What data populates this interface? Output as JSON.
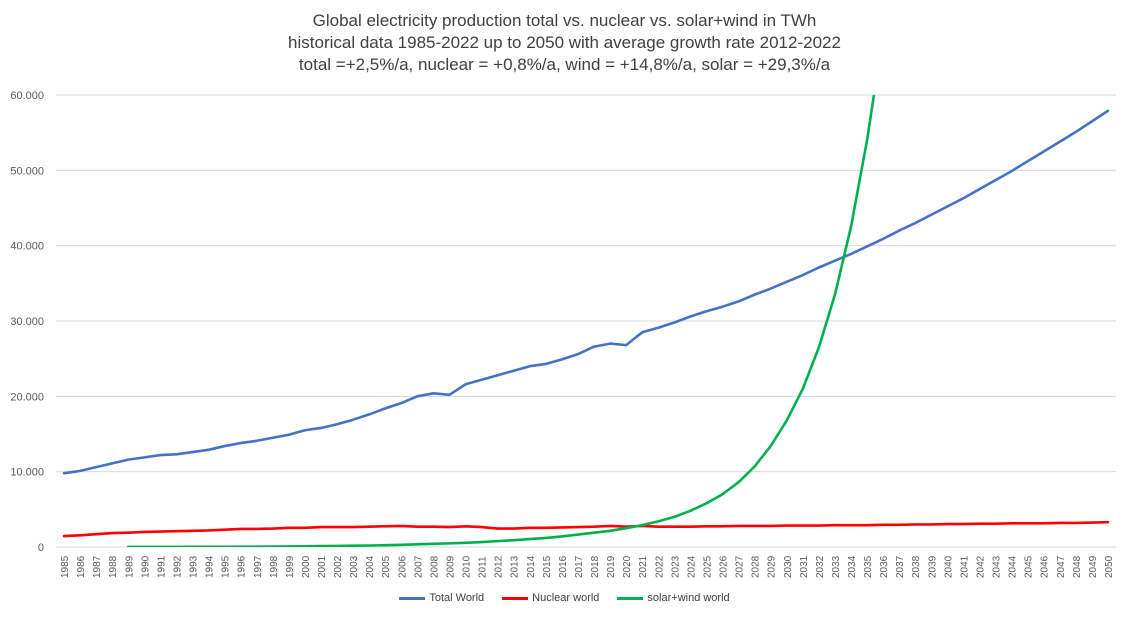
{
  "chart_data": {
    "type": "line",
    "title": "Global electricity production total vs. nuclear vs. solar+wind in TWh",
    "subtitle_lines": [
      "historical data 1985-2022 up to 2050 with average growth rate 2012-2022",
      "total =+2,5%/a, nuclear = +0,8%/a, wind = +14,8%/a, solar = +29,3%/a"
    ],
    "ylim": [
      0,
      60000
    ],
    "yticks": [
      0,
      10000,
      20000,
      30000,
      40000,
      50000,
      60000
    ],
    "ytick_labels": [
      "0",
      "10.000",
      "20.000",
      "30.000",
      "40.000",
      "50.000",
      "60.000"
    ],
    "grid": "horizontal",
    "legend": "bottom",
    "categories": [
      "1985",
      "1986",
      "1987",
      "1988",
      "1989",
      "1990",
      "1991",
      "1992",
      "1993",
      "1994",
      "1995",
      "1996",
      "1997",
      "1998",
      "1999",
      "2000",
      "2001",
      "2002",
      "2003",
      "2004",
      "2005",
      "2006",
      "2007",
      "2008",
      "2009",
      "2010",
      "2011",
      "2012",
      "2013",
      "2014",
      "2015",
      "2016",
      "2017",
      "2018",
      "2019",
      "2020",
      "2021",
      "2022",
      "2023",
      "2024",
      "2025",
      "2026",
      "2027",
      "2028",
      "2029",
      "2030",
      "2031",
      "2032",
      "2033",
      "2034",
      "2035",
      "2036",
      "2037",
      "2038",
      "2039",
      "2040",
      "2041",
      "2042",
      "2043",
      "2044",
      "2045",
      "2046",
      "2047",
      "2048",
      "2049",
      "2050"
    ],
    "series": [
      {
        "name": "Total World",
        "color": "#4472c4",
        "values": [
          9800,
          10100,
          10600,
          11100,
          11600,
          11900,
          12200,
          12300,
          12600,
          12900,
          13400,
          13800,
          14100,
          14500,
          14900,
          15500,
          15800,
          16300,
          16900,
          17600,
          18400,
          19100,
          20000,
          20400,
          20200,
          21600,
          22200,
          22800,
          23400,
          24000,
          24300,
          24900,
          25600,
          26600,
          27000,
          26800,
          28500,
          29100,
          29800,
          30600,
          31300,
          31900,
          32600,
          33500,
          34300,
          35200,
          36100,
          37100,
          38000,
          38900,
          39900,
          40900,
          42000,
          43000,
          44100,
          45200,
          46300,
          47500,
          48700,
          49900,
          51200,
          52500,
          53800,
          55100,
          56500,
          57900
        ]
      },
      {
        "name": "Nuclear world",
        "color": "#ff0000",
        "values": [
          1450,
          1550,
          1700,
          1850,
          1900,
          2000,
          2050,
          2100,
          2150,
          2200,
          2300,
          2400,
          2400,
          2450,
          2550,
          2550,
          2650,
          2650,
          2650,
          2700,
          2750,
          2800,
          2700,
          2700,
          2650,
          2750,
          2650,
          2450,
          2450,
          2550,
          2550,
          2600,
          2650,
          2700,
          2800,
          2700,
          2800,
          2700,
          2700,
          2700,
          2750,
          2750,
          2800,
          2800,
          2800,
          2850,
          2850,
          2850,
          2900,
          2900,
          2900,
          2950,
          2950,
          3000,
          3000,
          3050,
          3050,
          3100,
          3100,
          3150,
          3150,
          3150,
          3200,
          3200,
          3250,
          3300
        ]
      },
      {
        "name": "solar+wind world",
        "color": "#00b050",
        "values": [
          null,
          null,
          null,
          null,
          5,
          10,
          10,
          15,
          20,
          25,
          30,
          40,
          50,
          60,
          80,
          100,
          120,
          140,
          170,
          200,
          240,
          290,
          350,
          420,
          480,
          560,
          650,
          780,
          900,
          1050,
          1200,
          1400,
          1650,
          1900,
          2150,
          2500,
          2900,
          3400,
          4000,
          4800,
          5800,
          7000,
          8600,
          10700,
          13400,
          16800,
          21000,
          26500,
          33500,
          42500,
          54000,
          68000,
          null,
          null,
          null,
          null,
          null,
          null,
          null,
          null,
          null,
          null,
          null,
          null,
          null,
          null
        ]
      }
    ]
  }
}
